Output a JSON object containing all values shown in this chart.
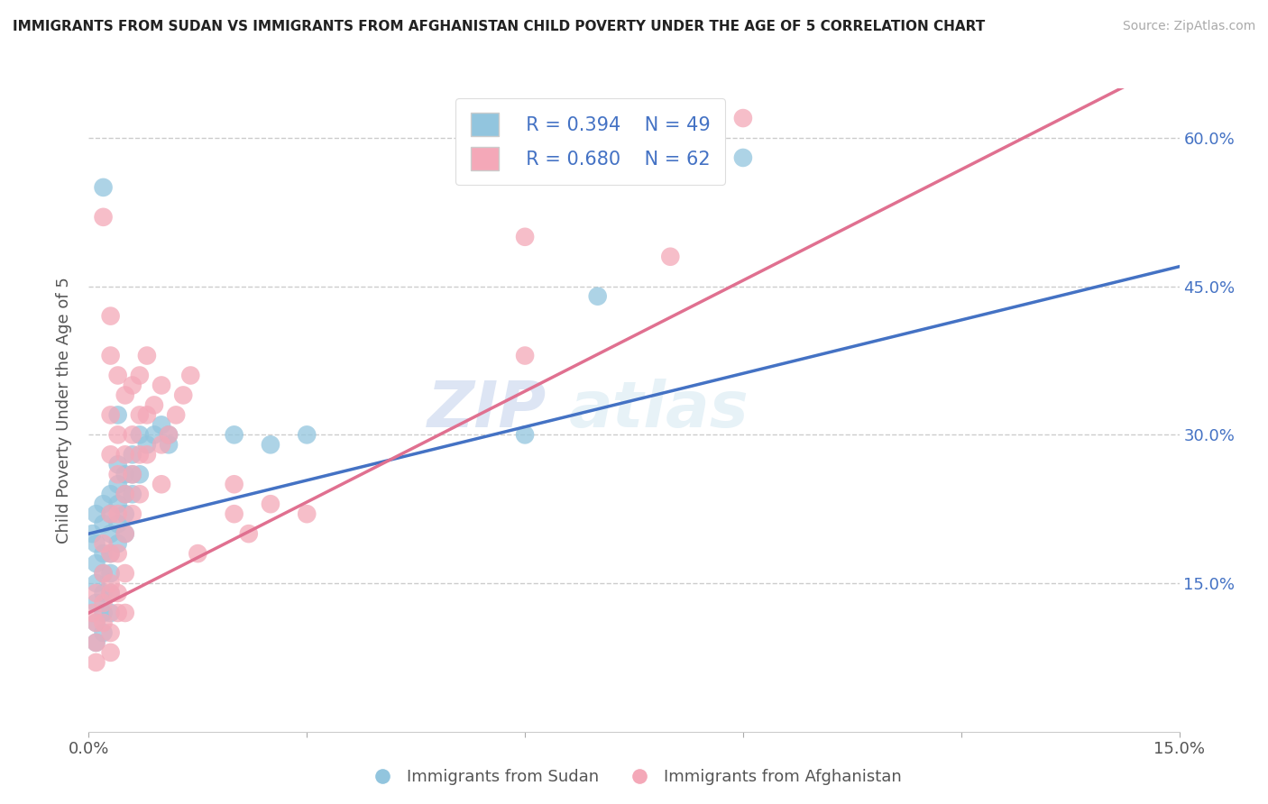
{
  "title": "IMMIGRANTS FROM SUDAN VS IMMIGRANTS FROM AFGHANISTAN CHILD POVERTY UNDER THE AGE OF 5 CORRELATION CHART",
  "source": "Source: ZipAtlas.com",
  "ylabel": "Child Poverty Under the Age of 5",
  "xlim": [
    0.0,
    0.15
  ],
  "ylim": [
    0.0,
    0.65
  ],
  "y_ticks_right": [
    0.15,
    0.3,
    0.45,
    0.6
  ],
  "y_tick_labels_right": [
    "15.0%",
    "30.0%",
    "45.0%",
    "60.0%"
  ],
  "legend_sudan_R": "R = 0.394",
  "legend_sudan_N": "N = 49",
  "legend_afghanistan_R": "R = 0.680",
  "legend_afghanistan_N": "N = 62",
  "sudan_color": "#92C5DE",
  "afghanistan_color": "#F4A8B8",
  "sudan_line_color": "#4472C4",
  "afghanistan_line_color": "#E07090",
  "watermark_zip": "ZIP",
  "watermark_atlas": "atlas",
  "sudan_line": [
    0.0,
    0.2,
    0.15,
    0.47
  ],
  "afghanistan_line": [
    0.0,
    0.12,
    0.15,
    0.68
  ],
  "sudan_points": [
    [
      0.0005,
      0.2
    ],
    [
      0.001,
      0.22
    ],
    [
      0.001,
      0.19
    ],
    [
      0.001,
      0.17
    ],
    [
      0.001,
      0.15
    ],
    [
      0.001,
      0.13
    ],
    [
      0.001,
      0.11
    ],
    [
      0.001,
      0.09
    ],
    [
      0.002,
      0.55
    ],
    [
      0.002,
      0.23
    ],
    [
      0.002,
      0.21
    ],
    [
      0.002,
      0.18
    ],
    [
      0.002,
      0.16
    ],
    [
      0.002,
      0.14
    ],
    [
      0.002,
      0.12
    ],
    [
      0.002,
      0.1
    ],
    [
      0.003,
      0.24
    ],
    [
      0.003,
      0.22
    ],
    [
      0.003,
      0.2
    ],
    [
      0.003,
      0.18
    ],
    [
      0.003,
      0.16
    ],
    [
      0.003,
      0.14
    ],
    [
      0.003,
      0.12
    ],
    [
      0.004,
      0.32
    ],
    [
      0.004,
      0.27
    ],
    [
      0.004,
      0.25
    ],
    [
      0.004,
      0.23
    ],
    [
      0.004,
      0.21
    ],
    [
      0.004,
      0.19
    ],
    [
      0.005,
      0.26
    ],
    [
      0.005,
      0.24
    ],
    [
      0.005,
      0.22
    ],
    [
      0.005,
      0.2
    ],
    [
      0.006,
      0.28
    ],
    [
      0.006,
      0.26
    ],
    [
      0.006,
      0.24
    ],
    [
      0.007,
      0.3
    ],
    [
      0.007,
      0.26
    ],
    [
      0.008,
      0.29
    ],
    [
      0.009,
      0.3
    ],
    [
      0.01,
      0.31
    ],
    [
      0.011,
      0.29
    ],
    [
      0.011,
      0.3
    ],
    [
      0.02,
      0.3
    ],
    [
      0.025,
      0.29
    ],
    [
      0.03,
      0.3
    ],
    [
      0.06,
      0.3
    ],
    [
      0.07,
      0.44
    ],
    [
      0.09,
      0.58
    ]
  ],
  "afghanistan_points": [
    [
      0.0005,
      0.12
    ],
    [
      0.001,
      0.14
    ],
    [
      0.001,
      0.11
    ],
    [
      0.001,
      0.09
    ],
    [
      0.001,
      0.07
    ],
    [
      0.002,
      0.16
    ],
    [
      0.002,
      0.13
    ],
    [
      0.002,
      0.11
    ],
    [
      0.002,
      0.52
    ],
    [
      0.003,
      0.42
    ],
    [
      0.003,
      0.38
    ],
    [
      0.003,
      0.32
    ],
    [
      0.003,
      0.28
    ],
    [
      0.003,
      0.22
    ],
    [
      0.003,
      0.18
    ],
    [
      0.003,
      0.14
    ],
    [
      0.003,
      0.1
    ],
    [
      0.003,
      0.08
    ],
    [
      0.004,
      0.36
    ],
    [
      0.004,
      0.3
    ],
    [
      0.004,
      0.26
    ],
    [
      0.004,
      0.22
    ],
    [
      0.004,
      0.18
    ],
    [
      0.004,
      0.14
    ],
    [
      0.005,
      0.34
    ],
    [
      0.005,
      0.28
    ],
    [
      0.005,
      0.24
    ],
    [
      0.005,
      0.2
    ],
    [
      0.005,
      0.16
    ],
    [
      0.006,
      0.35
    ],
    [
      0.006,
      0.3
    ],
    [
      0.006,
      0.26
    ],
    [
      0.006,
      0.22
    ],
    [
      0.007,
      0.36
    ],
    [
      0.007,
      0.32
    ],
    [
      0.007,
      0.28
    ],
    [
      0.007,
      0.24
    ],
    [
      0.008,
      0.38
    ],
    [
      0.008,
      0.32
    ],
    [
      0.008,
      0.28
    ],
    [
      0.009,
      0.33
    ],
    [
      0.01,
      0.35
    ],
    [
      0.01,
      0.29
    ],
    [
      0.01,
      0.25
    ],
    [
      0.011,
      0.3
    ],
    [
      0.012,
      0.32
    ],
    [
      0.013,
      0.34
    ],
    [
      0.014,
      0.36
    ],
    [
      0.015,
      0.18
    ],
    [
      0.02,
      0.22
    ],
    [
      0.02,
      0.25
    ],
    [
      0.022,
      0.2
    ],
    [
      0.025,
      0.23
    ],
    [
      0.03,
      0.22
    ],
    [
      0.06,
      0.38
    ],
    [
      0.06,
      0.5
    ],
    [
      0.08,
      0.48
    ],
    [
      0.09,
      0.62
    ],
    [
      0.003,
      0.15
    ],
    [
      0.002,
      0.19
    ],
    [
      0.004,
      0.12
    ],
    [
      0.005,
      0.12
    ]
  ]
}
